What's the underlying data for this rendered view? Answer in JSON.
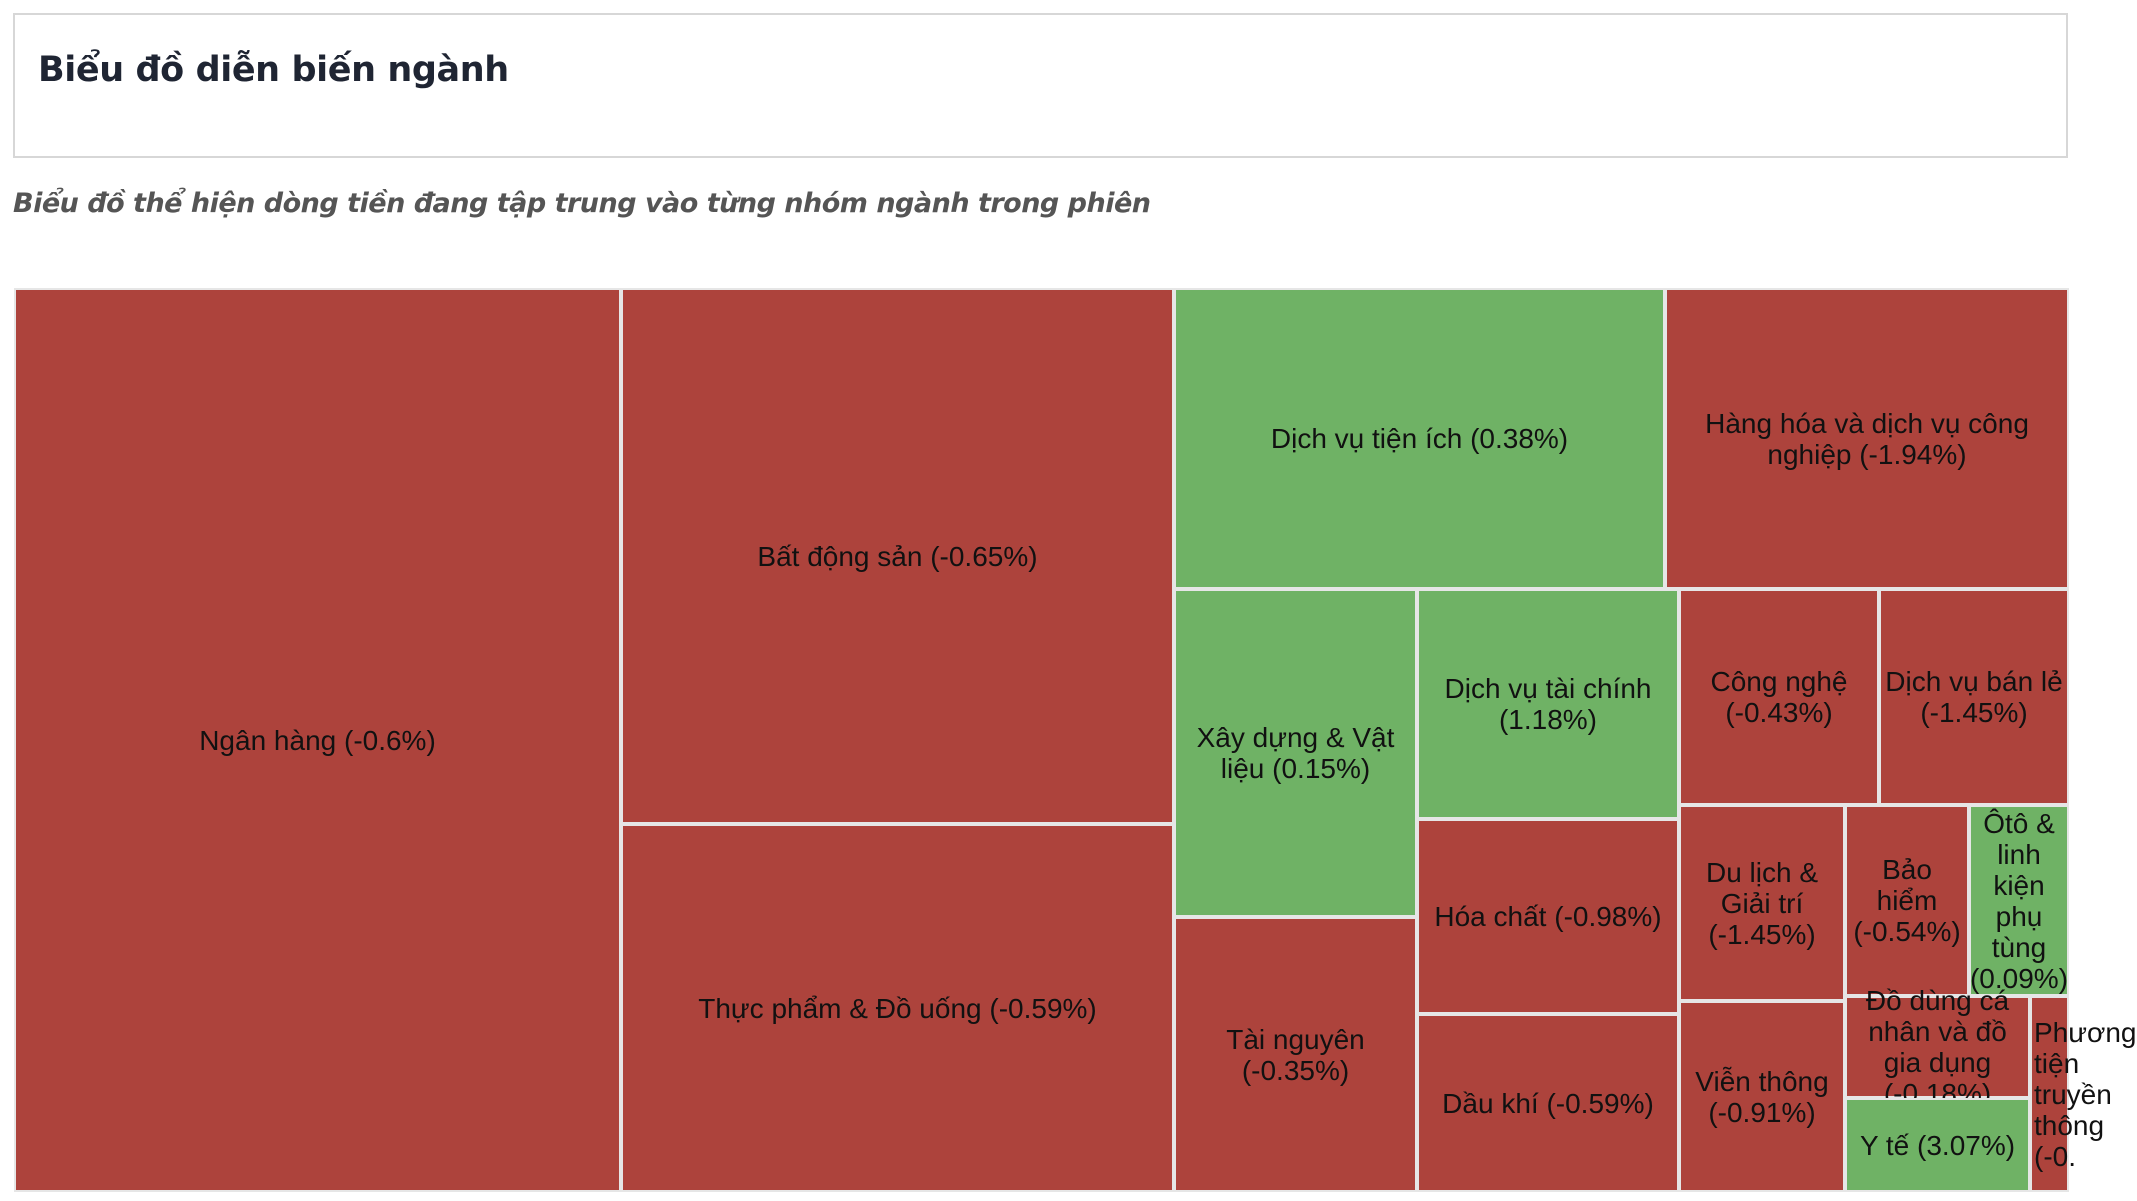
{
  "header": {
    "title": "Biểu đồ diễn biến ngành"
  },
  "subtitle": "Biểu đồ thể hiện dòng tiền đang tập trung vào từng nhóm ngành trong phiên",
  "colors": {
    "negative": "#ad433c",
    "positive": "#6fb265",
    "tile_border": "#e6e6e6",
    "label_text": "#111111"
  },
  "chart_data": {
    "type": "treemap",
    "title": "",
    "items": [
      {
        "name": "Ngân hàng",
        "change": -0.6,
        "label": "Ngân hàng (-0.6%)"
      },
      {
        "name": "Bất động sản",
        "change": -0.65,
        "label": "Bất động sản (-0.65%)"
      },
      {
        "name": "Thực phẩm & Đồ uống",
        "change": -0.59,
        "label": "Thực phẩm & Đồ uống (-0.59%)"
      },
      {
        "name": "Dịch vụ tiện ích",
        "change": 0.38,
        "label": "Dịch vụ tiện ích (0.38%)"
      },
      {
        "name": "Hàng hóa và dịch vụ công nghiệp",
        "change": -1.94,
        "label": "Hàng hóa và dịch vụ công nghiệp (-1.94%)"
      },
      {
        "name": "Xây dựng & Vật liệu",
        "change": 0.15,
        "label": "Xây dựng & Vật liệu (0.15%)"
      },
      {
        "name": "Dịch vụ tài chính",
        "change": 1.18,
        "label": "Dịch vụ tài chính (1.18%)"
      },
      {
        "name": "Công nghệ",
        "change": -0.43,
        "label": "Công nghệ (-0.43%)"
      },
      {
        "name": "Dịch vụ bán lẻ",
        "change": -1.45,
        "label": "Dịch vụ bán lẻ (-1.45%)"
      },
      {
        "name": "Hóa chất",
        "change": -0.98,
        "label": "Hóa chất (-0.98%)"
      },
      {
        "name": "Tài nguyên",
        "change": -0.35,
        "label": "Tài nguyên (-0.35%)"
      },
      {
        "name": "Dầu khí",
        "change": -0.59,
        "label": "Dầu khí (-0.59%)"
      },
      {
        "name": "Du lịch & Giải trí",
        "change": -1.45,
        "label": "Du lịch & Giải trí (-1.45%)"
      },
      {
        "name": "Bảo hiểm",
        "change": -0.54,
        "label": "Bảo hiểm (-0.54%)"
      },
      {
        "name": "Ôtô & linh kiện phụ tùng",
        "change": 0.09,
        "label": "Ôtô & linh kiện phụ tùng (0.09%)"
      },
      {
        "name": "Viễn thông",
        "change": -0.91,
        "label": "Viễn thông (-0.91%)"
      },
      {
        "name": "Đồ dùng cá nhân và đồ gia dụng",
        "change": -0.18,
        "label": "Đồ dùng cá nhân và đồ gia dụng (-0.18%)"
      },
      {
        "name": "Y tế",
        "change": 3.07,
        "label": "Y tế (3.07%)"
      },
      {
        "name": "Phương tiện truyền thông",
        "change": null,
        "label": "Phương tiện truyền thông (-0."
      }
    ]
  }
}
